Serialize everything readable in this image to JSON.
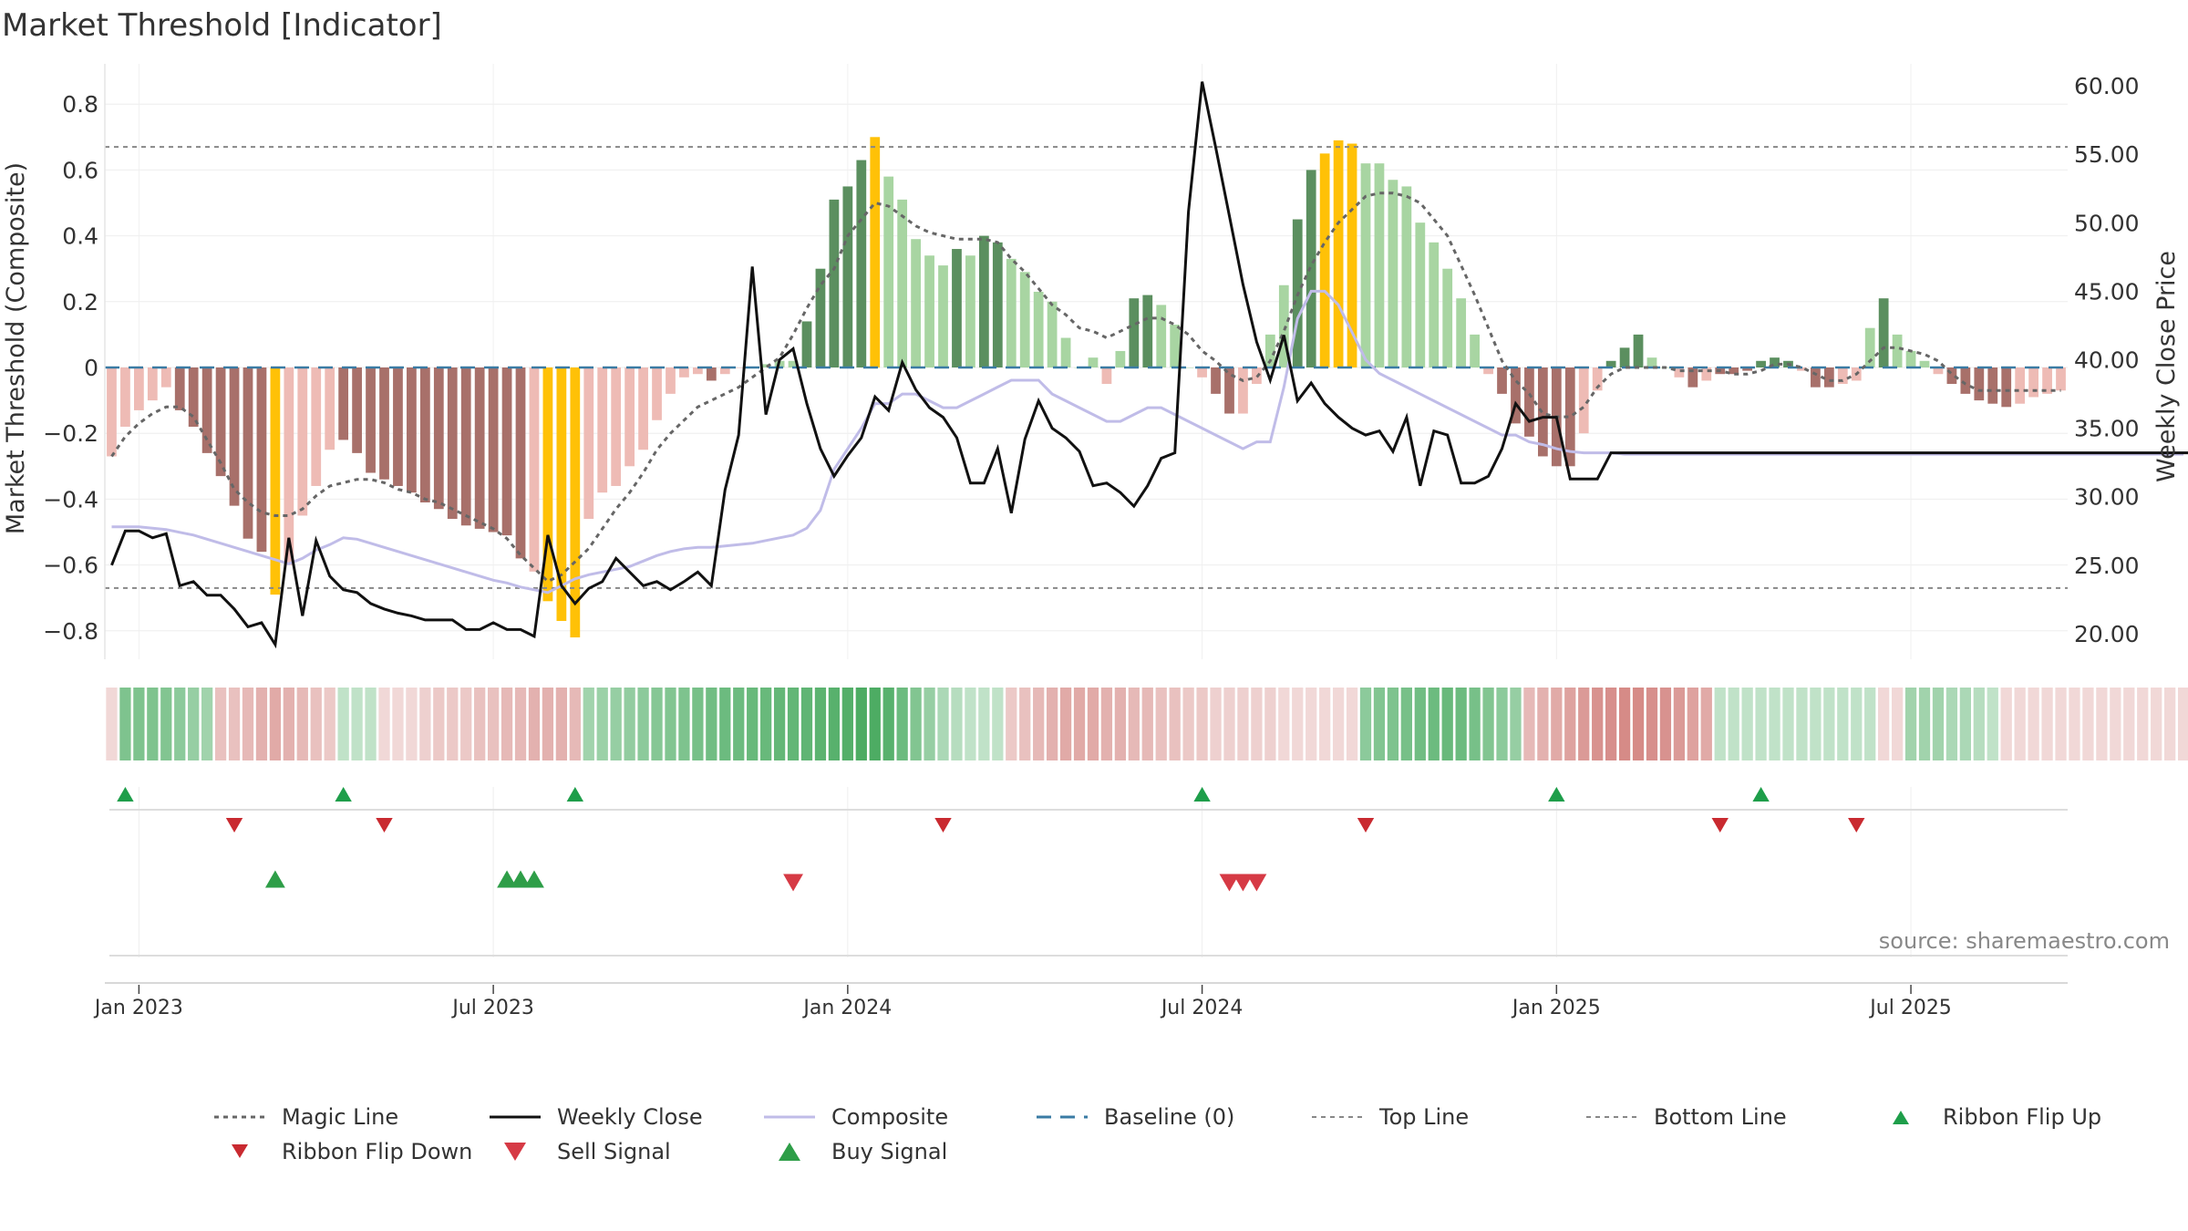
{
  "title": "Market Threshold [Indicator]",
  "source": "source: sharemaestro.com",
  "colors": {
    "gold": "#FFC107",
    "dark_green": "#5B8F5F",
    "light_green": "#A8D5A2",
    "dark_red": "#A8706A",
    "light_red": "#EEBBB5",
    "magic": "#666666",
    "close": "#111111",
    "composite": "#C0BCE8",
    "baseline": "#3A7BA4",
    "threshold": "#888888",
    "buy": "#2E9E48",
    "sell": "#D63A45"
  },
  "legend": [
    {
      "key": "magic",
      "label": "Magic Line"
    },
    {
      "key": "close",
      "label": "Weekly Close"
    },
    {
      "key": "composite",
      "label": "Composite"
    },
    {
      "key": "baseline",
      "label": "Baseline (0)"
    },
    {
      "key": "top",
      "label": "Top Line"
    },
    {
      "key": "bottom",
      "label": "Bottom Line"
    },
    {
      "key": "flip_up",
      "label": "Ribbon Flip Up"
    },
    {
      "key": "flip_down",
      "label": "Ribbon Flip Down"
    },
    {
      "key": "sell",
      "label": "Sell Signal"
    },
    {
      "key": "buy",
      "label": "Buy Signal"
    }
  ],
  "chart_data": {
    "type": "bar",
    "xlabel": "",
    "ylabel": "Market Threshold (Composite)",
    "ylabel_right": "Weekly Close Price",
    "ylim": [
      -0.9,
      0.9
    ],
    "ylim_right": [
      17.5,
      63.1
    ],
    "xlim": [
      -0.5,
      143.5
    ],
    "yticks": [
      "−0.8",
      "−0.6",
      "−0.4",
      "−0.2",
      "0",
      "0.2",
      "0.4",
      "0.6",
      "0.8"
    ],
    "yticks_right": [
      "20.00",
      "25.00",
      "30.00",
      "35.00",
      "40.00",
      "45.00",
      "50.00",
      "55.00",
      "60.00"
    ],
    "x_ticks": [
      {
        "label": "Jan 2023",
        "week": 2
      },
      {
        "label": "Jul 2023",
        "week": 28
      },
      {
        "label": "Jan 2024",
        "week": 54
      },
      {
        "label": "Jul 2024",
        "week": 80
      },
      {
        "label": "Jan 2025",
        "week": 106
      },
      {
        "label": "Jul 2025",
        "week": 132
      }
    ],
    "top_line": 0.67,
    "bottom_line": -0.67,
    "baseline": 0,
    "bar_values": [
      -0.27,
      -0.18,
      -0.13,
      -0.1,
      -0.06,
      -0.13,
      -0.18,
      -0.26,
      -0.33,
      -0.42,
      -0.52,
      -0.56,
      -0.69,
      -0.6,
      -0.45,
      -0.36,
      -0.25,
      -0.22,
      -0.26,
      -0.32,
      -0.34,
      -0.36,
      -0.38,
      -0.41,
      -0.43,
      -0.46,
      -0.48,
      -0.49,
      -0.5,
      -0.51,
      -0.58,
      -0.62,
      -0.71,
      -0.77,
      -0.82,
      -0.46,
      -0.38,
      -0.36,
      -0.3,
      -0.25,
      -0.16,
      -0.08,
      -0.03,
      -0.02,
      -0.04,
      -0.02,
      0,
      0,
      0.01,
      0.02,
      0.02,
      0.14,
      0.3,
      0.51,
      0.55,
      0.63,
      0.7,
      0.58,
      0.51,
      0.39,
      0.34,
      0.31,
      0.36,
      0.34,
      0.4,
      0.38,
      0.33,
      0.29,
      0.23,
      0.2,
      0.09,
      0,
      0.03,
      -0.05,
      0.05,
      0.21,
      0.22,
      0.19,
      0.13,
      0,
      -0.03,
      -0.08,
      -0.14,
      -0.14,
      -0.05,
      0.1,
      0.25,
      0.45,
      0.6,
      0.65,
      0.69,
      0.68,
      0.62,
      0.62,
      0.57,
      0.55,
      0.44,
      0.38,
      0.3,
      0.21,
      0.1,
      -0.02,
      -0.08,
      -0.17,
      -0.21,
      -0.27,
      -0.3,
      -0.3,
      -0.2,
      -0.07,
      0.02,
      0.06,
      0.1,
      0.03,
      0,
      -0.03,
      -0.06,
      -0.04,
      -0.02,
      -0.02,
      -0.01,
      0.02,
      0.03,
      0.02,
      -0.01,
      -0.06,
      -0.06,
      -0.05,
      -0.04,
      0.12,
      0.21,
      0.1,
      0.05,
      0.02,
      -0.02,
      -0.05,
      -0.08,
      -0.1,
      -0.11,
      -0.12,
      -0.11,
      -0.09,
      -0.08,
      -0.07
    ],
    "bar_class": [
      "lr",
      "lr",
      "lr",
      "lr",
      "lr",
      "dr",
      "dr",
      "dr",
      "dr",
      "dr",
      "dr",
      "dr",
      "g",
      "lr",
      "lr",
      "lr",
      "lr",
      "dr",
      "dr",
      "dr",
      "dr",
      "dr",
      "dr",
      "dr",
      "dr",
      "dr",
      "dr",
      "dr",
      "dr",
      "dr",
      "dr",
      "lr",
      "g",
      "g",
      "g",
      "lr",
      "lr",
      "lr",
      "lr",
      "lr",
      "lr",
      "lr",
      "lr",
      "lr",
      "dr",
      "lr",
      "lr",
      "lr",
      "lg",
      "lg",
      "lg",
      "dg",
      "dg",
      "dg",
      "dg",
      "dg",
      "g",
      "lg",
      "lg",
      "lg",
      "lg",
      "lg",
      "dg",
      "lg",
      "dg",
      "dg",
      "lg",
      "lg",
      "lg",
      "lg",
      "lg",
      "lg",
      "lg",
      "lr",
      "lg",
      "dg",
      "dg",
      "lg",
      "lg",
      "lg",
      "lr",
      "dr",
      "dr",
      "lr",
      "lr",
      "lg",
      "lg",
      "dg",
      "dg",
      "g",
      "g",
      "g",
      "lg",
      "lg",
      "lg",
      "lg",
      "lg",
      "lg",
      "lg",
      "lg",
      "lg",
      "lr",
      "dr",
      "dr",
      "dr",
      "dr",
      "dr",
      "dr",
      "lr",
      "lr",
      "dg",
      "dg",
      "dg",
      "lg",
      "lg",
      "lr",
      "dr",
      "lr",
      "dr",
      "dr",
      "dr",
      "dg",
      "dg",
      "dg",
      "lr",
      "dr",
      "dr",
      "lr",
      "lr",
      "lg",
      "dg",
      "lg",
      "lg",
      "lg",
      "lr",
      "dr",
      "dr",
      "dr",
      "dr",
      "dr",
      "lr",
      "lr",
      "lr",
      "lr"
    ],
    "weekly_close": [
      25,
      27.5,
      27.5,
      27,
      27.3,
      23.5,
      23.8,
      22.8,
      22.8,
      21.8,
      20.5,
      20.8,
      19.2,
      27,
      21.3,
      26.8,
      24.2,
      23.2,
      23,
      22.2,
      21.8,
      21.5,
      21.3,
      21,
      21,
      21,
      20.3,
      20.3,
      20.8,
      20.3,
      20.3,
      19.8,
      27.2,
      23.5,
      22.2,
      23.3,
      23.8,
      25.5,
      24.5,
      23.5,
      23.8,
      23.2,
      23.8,
      24.5,
      23.5,
      30.5,
      34.5,
      46.8,
      36,
      40,
      40.8,
      36.8,
      33.5,
      31.5,
      33,
      34.3,
      37.3,
      36.3,
      39.8,
      37.8,
      36.5,
      35.8,
      34.3,
      31,
      31,
      33.5,
      28.8,
      34.2,
      37,
      35,
      34.3,
      33.3,
      30.8,
      31,
      30.3,
      29.3,
      30.8,
      32.8,
      33.2,
      50.8,
      60.3,
      55.5,
      50.5,
      45.5,
      41.3,
      38.5,
      41.8,
      37,
      38.3,
      36.8,
      35.8,
      35,
      34.5,
      34.8,
      33.3,
      35.8,
      30.8,
      34.8,
      34.5,
      31,
      31,
      31.5,
      33.5,
      36.8,
      35.5,
      35.8,
      35.8,
      31.3,
      31.3,
      31.3,
      33.2,
      33.2,
      33.2,
      33.2,
      33.2,
      33.2,
      33.2,
      33.2,
      33.2,
      33.2,
      33.2,
      33.2,
      33.2,
      33.2,
      33.2,
      33.2,
      33.2,
      33.2,
      33.2,
      33.2,
      33.2,
      33.2,
      33.2,
      33.2,
      33.2,
      33.2,
      33.2,
      33.2,
      33.2,
      33.2,
      33.2,
      33.2,
      33.2,
      33.2,
      33.2,
      33.2,
      33.2,
      33.2,
      33.2,
      33.2,
      33.2,
      33.2,
      33.2,
      33.2,
      33.2,
      33.2,
      33.2,
      33.2,
      33.2,
      33.2,
      33.2,
      33.2
    ],
    "composite": [
      27.8,
      27.8,
      27.8,
      27.7,
      27.6,
      27.4,
      27.2,
      26.9,
      26.6,
      26.3,
      26,
      25.7,
      25.4,
      25.1,
      25.5,
      26.1,
      26.5,
      27,
      26.9,
      26.6,
      26.3,
      26,
      25.7,
      25.4,
      25.1,
      24.8,
      24.5,
      24.2,
      23.9,
      23.7,
      23.4,
      23.2,
      23,
      23.5,
      24,
      24.3,
      24.5,
      24.7,
      24.9,
      25.3,
      25.7,
      26,
      26.2,
      26.3,
      26.3,
      26.4,
      26.5,
      26.6,
      26.8,
      27,
      27.2,
      27.7,
      29,
      32,
      33.5,
      35,
      36.8,
      36.8,
      37.5,
      37.5,
      37,
      36.5,
      36.5,
      37,
      37.5,
      38,
      38.5,
      38.5,
      38.5,
      37.5,
      37,
      36.5,
      36,
      35.5,
      35.5,
      36,
      36.5,
      36.5,
      36,
      35.5,
      35,
      34.5,
      34,
      33.5,
      34,
      34,
      38,
      43,
      45,
      45,
      44,
      42,
      40,
      39,
      38.5,
      38,
      37.5,
      37,
      36.5,
      36,
      35.5,
      35,
      34.5,
      34.5,
      34,
      33.8,
      33.5,
      33.3,
      33.2,
      33.2,
      33.2,
      33.1,
      33.1,
      33.1,
      33.1,
      33.1,
      33.1,
      33.1,
      33.1,
      33.1,
      33.1,
      33.1,
      33.1,
      33.1,
      33.1,
      33.1,
      33.1,
      33.1,
      33.1,
      33.1,
      33.1,
      33.1,
      33.1,
      33.1,
      33.1,
      33.1,
      33.1,
      33.1,
      33.1,
      33.1,
      33.1,
      33.1,
      33.1,
      33.1,
      33.1,
      33.1,
      33.1,
      33.1,
      33.1,
      33.1,
      33.1,
      33.1,
      33.1
    ],
    "magic_line": [
      -0.27,
      -0.21,
      -0.17,
      -0.14,
      -0.12,
      -0.12,
      -0.15,
      -0.22,
      -0.29,
      -0.37,
      -0.41,
      -0.44,
      -0.45,
      -0.45,
      -0.43,
      -0.39,
      -0.36,
      -0.35,
      -0.34,
      -0.34,
      -0.35,
      -0.37,
      -0.38,
      -0.4,
      -0.41,
      -0.43,
      -0.45,
      -0.47,
      -0.49,
      -0.52,
      -0.57,
      -0.61,
      -0.65,
      -0.63,
      -0.59,
      -0.55,
      -0.49,
      -0.43,
      -0.38,
      -0.32,
      -0.25,
      -0.2,
      -0.16,
      -0.12,
      -0.1,
      -0.08,
      -0.06,
      -0.03,
      0,
      0.03,
      0.1,
      0.18,
      0.25,
      0.3,
      0.4,
      0.45,
      0.5,
      0.49,
      0.46,
      0.43,
      0.41,
      0.4,
      0.39,
      0.39,
      0.39,
      0.38,
      0.33,
      0.29,
      0.24,
      0.19,
      0.16,
      0.12,
      0.11,
      0.09,
      0.11,
      0.13,
      0.15,
      0.15,
      0.13,
      0.1,
      0.05,
      0.02,
      -0.02,
      -0.04,
      -0.03,
      0.02,
      0.11,
      0.22,
      0.31,
      0.38,
      0.44,
      0.48,
      0.52,
      0.53,
      0.53,
      0.52,
      0.5,
      0.45,
      0.4,
      0.31,
      0.22,
      0.12,
      0.02,
      -0.04,
      -0.08,
      -0.14,
      -0.15,
      -0.15,
      -0.12,
      -0.06,
      -0.02,
      0,
      0,
      0,
      0,
      -0.01,
      -0.01,
      -0.01,
      -0.01,
      -0.02,
      -0.02,
      -0.01,
      0.01,
      0.01,
      0,
      -0.02,
      -0.04,
      -0.04,
      -0.02,
      0.02,
      0.06,
      0.06,
      0.05,
      0.04,
      0.02,
      -0.02,
      -0.05,
      -0.07,
      -0.07,
      -0.07,
      -0.07,
      -0.07,
      -0.07,
      -0.07
    ],
    "ribbon": [
      -0.25,
      0.62,
      0.62,
      0.62,
      0.6,
      0.55,
      0.5,
      0.45,
      -0.4,
      -0.4,
      -0.45,
      -0.5,
      -0.55,
      -0.5,
      -0.45,
      -0.4,
      -0.35,
      0.3,
      0.3,
      0.3,
      -0.25,
      -0.25,
      -0.25,
      -0.3,
      -0.35,
      -0.35,
      -0.35,
      -0.4,
      -0.4,
      -0.45,
      -0.45,
      -0.5,
      -0.5,
      -0.5,
      -0.45,
      0.45,
      0.48,
      0.5,
      0.52,
      0.55,
      0.58,
      0.6,
      0.62,
      0.65,
      0.68,
      0.7,
      0.7,
      0.72,
      0.72,
      0.74,
      0.75,
      0.76,
      0.78,
      0.8,
      0.82,
      0.85,
      0.85,
      0.8,
      0.7,
      0.6,
      0.5,
      0.4,
      0.35,
      0.3,
      0.3,
      0.3,
      -0.35,
      -0.4,
      -0.45,
      -0.5,
      -0.55,
      -0.55,
      -0.55,
      -0.5,
      -0.5,
      -0.45,
      -0.45,
      -0.4,
      -0.4,
      -0.35,
      -0.35,
      -0.3,
      -0.3,
      -0.3,
      -0.3,
      -0.3,
      -0.25,
      -0.25,
      -0.25,
      -0.25,
      -0.25,
      -0.25,
      0.55,
      0.6,
      0.62,
      0.65,
      0.68,
      0.7,
      0.72,
      0.7,
      0.65,
      0.6,
      0.55,
      0.5,
      -0.45,
      -0.5,
      -0.55,
      -0.6,
      -0.65,
      -0.7,
      -0.72,
      -0.75,
      -0.75,
      -0.72,
      -0.7,
      -0.65,
      -0.6,
      -0.55,
      0.3,
      0.3,
      0.3,
      0.3,
      0.3,
      0.3,
      0.3,
      0.3,
      0.3,
      0.3,
      0.3,
      0.3,
      -0.25,
      -0.25,
      0.45,
      0.45,
      0.45,
      0.4,
      0.4,
      0.35,
      0.3,
      -0.25,
      -0.25,
      -0.25,
      -0.25,
      -0.25,
      -0.25,
      -0.25,
      -0.25,
      -0.25,
      -0.25,
      -0.25,
      -0.25,
      -0.25,
      -0.25,
      -0.25,
      -0.25,
      -0.25
    ],
    "ribbon_flip_up": [
      1,
      17,
      34,
      80,
      106,
      121
    ],
    "ribbon_flip_down": [
      9,
      20,
      61,
      92,
      118,
      128
    ],
    "buy_signals": [
      12,
      29,
      30,
      31
    ],
    "sell_signals": [
      50,
      82,
      83,
      84
    ]
  }
}
